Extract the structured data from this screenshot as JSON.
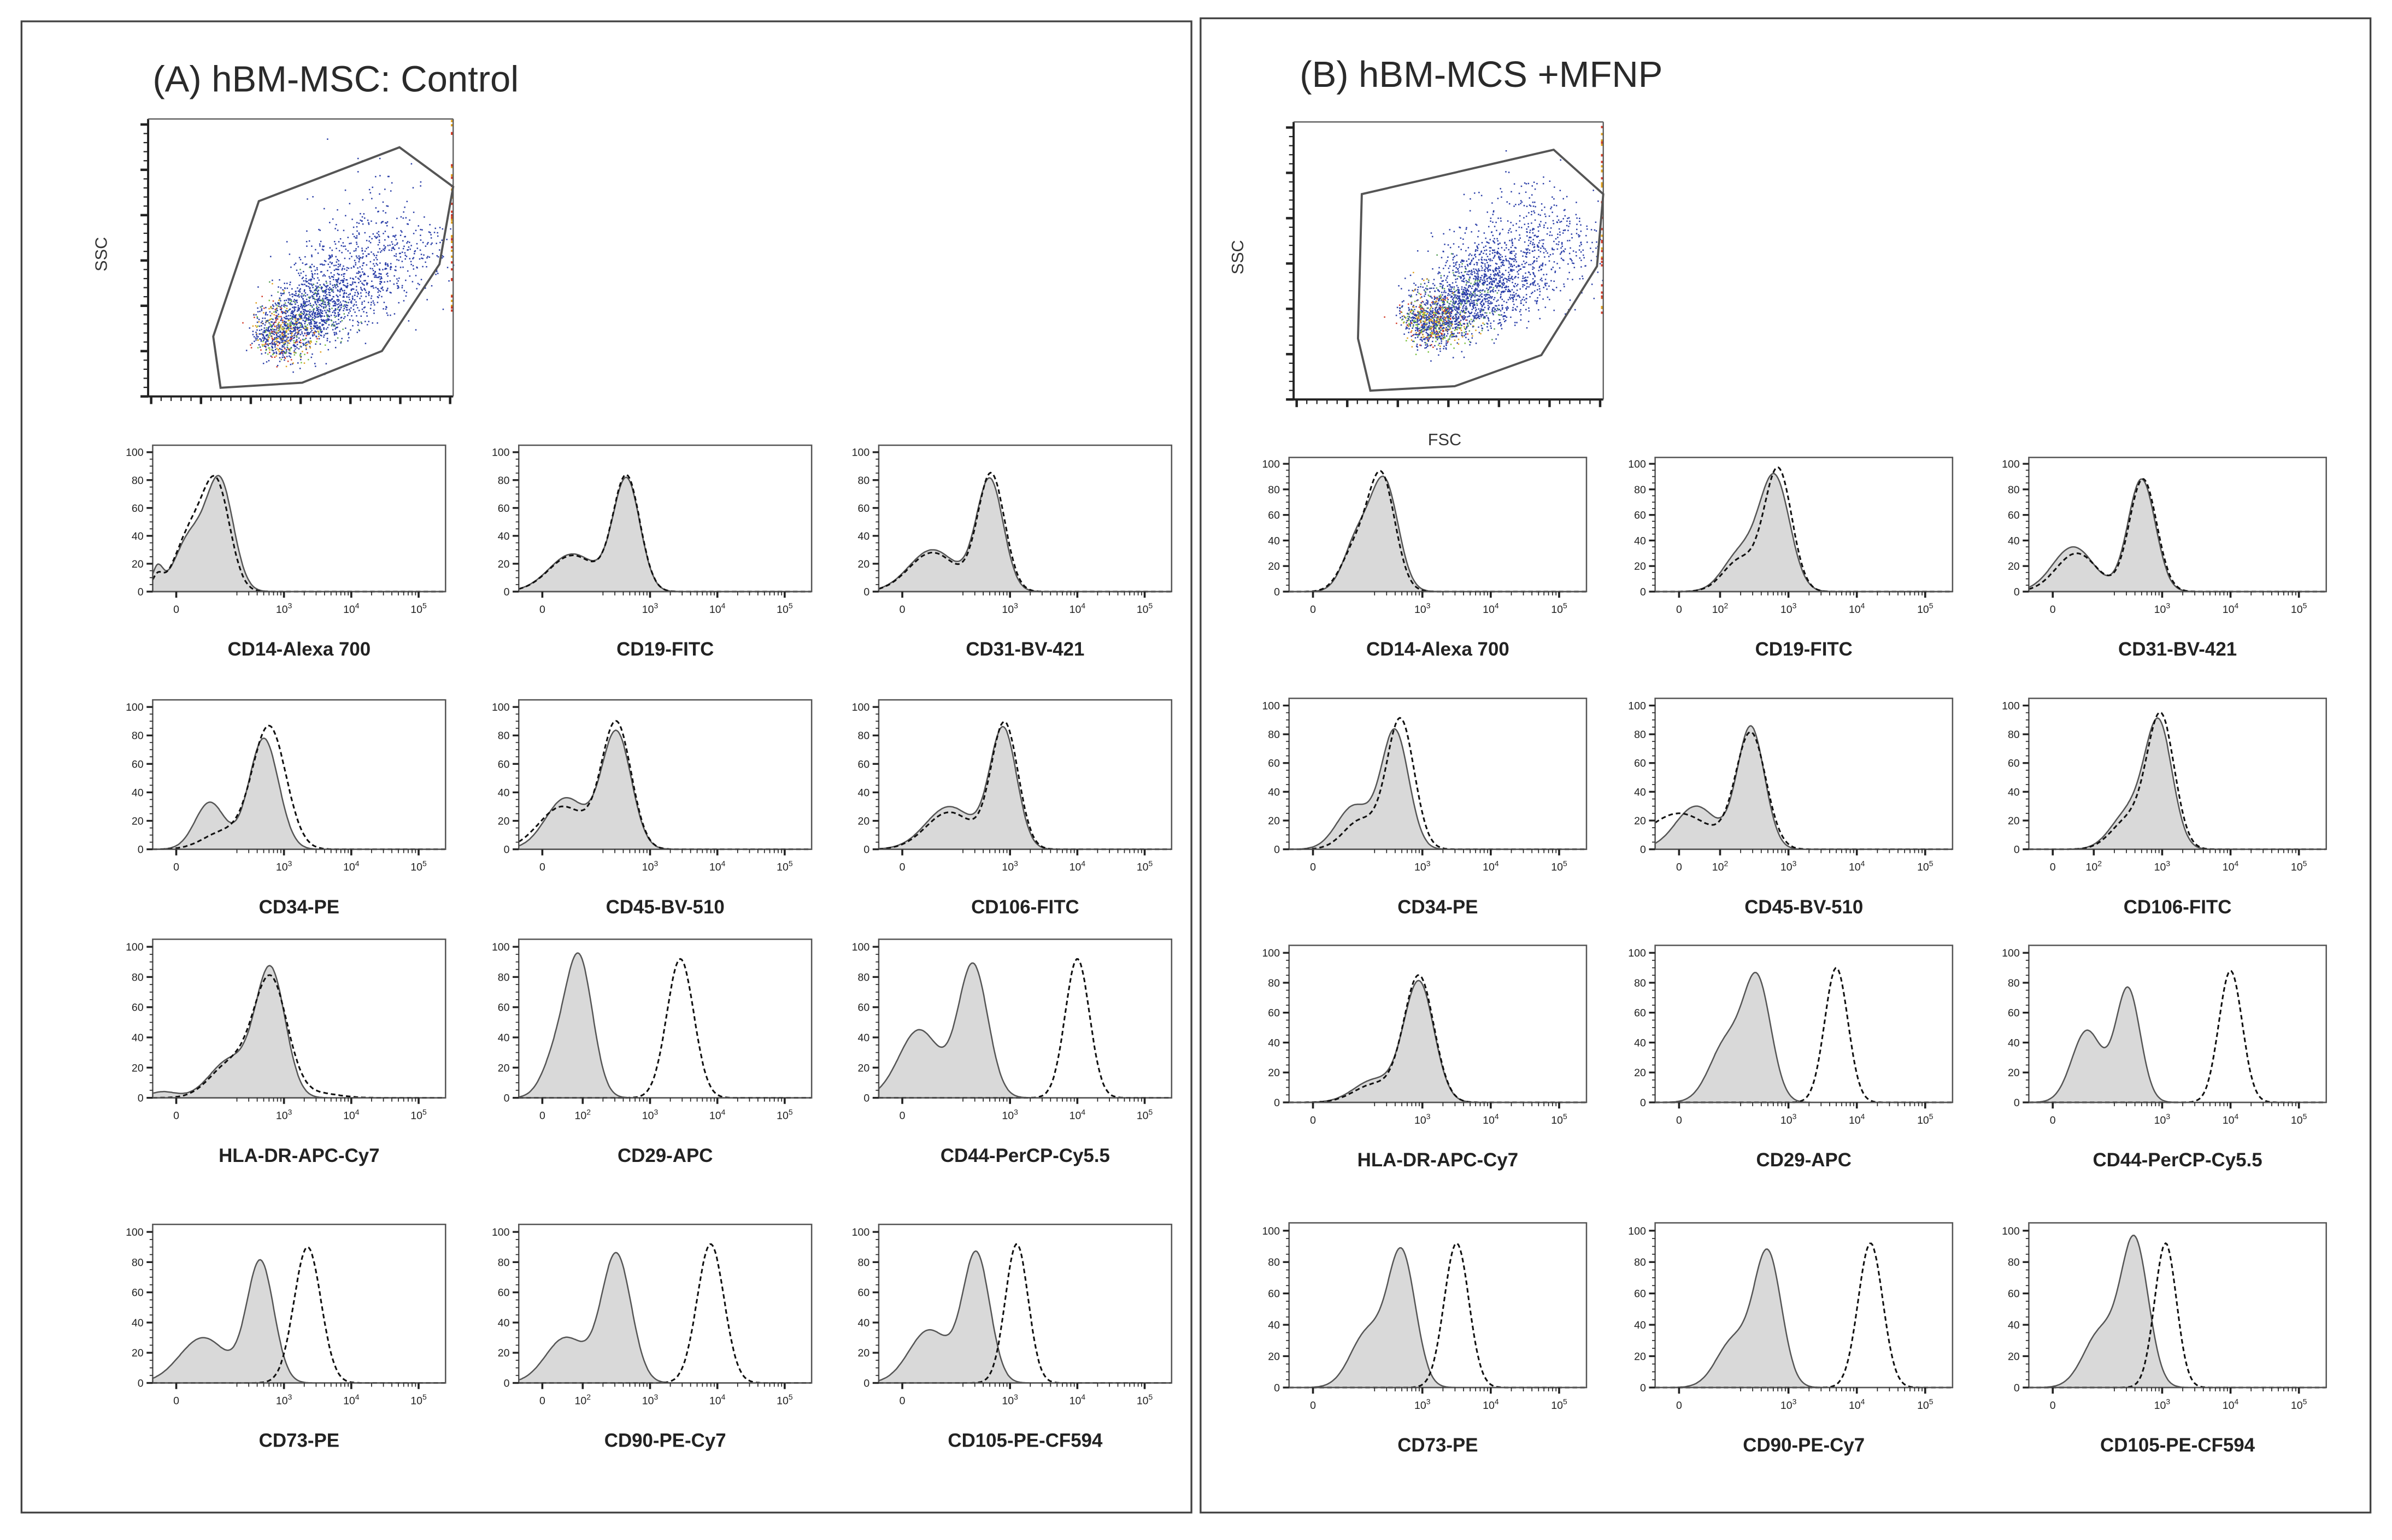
{
  "chart_data": [
    {
      "title": "(A) hBM-MSC: Control",
      "scatter": {
        "type": "scatter",
        "xlabel": "",
        "ylabel": "SSC",
        "xlim": [
          0,
          250
        ],
        "ylim": [
          0,
          250
        ],
        "gate": [
          [
            90.8,
            175.9
          ],
          [
            206,
            224.4
          ],
          [
            250,
            188.9
          ],
          [
            238.7,
            119.1
          ],
          [
            191.6,
            41
          ],
          [
            126.2,
            12.4
          ],
          [
            59.4,
            7.8
          ],
          [
            53.4,
            54
          ]
        ],
        "population": {
          "center": [
            97,
            47
          ],
          "axis_end": [
            205,
            140
          ],
          "events": 2200
        }
      },
      "histograms": [
        {
          "marker": "CD14-Alexa 700",
          "xticks": [
            "0",
            "10^3",
            "10^4",
            "10^5"
          ],
          "shaded": [
            [
              2.05,
              78,
              0.2
            ],
            [
              1.6,
              38,
              0.22
            ],
            [
              1.12,
              16,
              0.08
            ]
          ],
          "dashed": [
            [
              2.0,
              74,
              0.2
            ],
            [
              1.6,
              40,
              0.22
            ],
            [
              1.12,
              10,
              0.08
            ]
          ]
        },
        {
          "marker": "CD19-FITC",
          "xticks": [
            "0",
            "10^3",
            "10^4",
            "10^5"
          ],
          "shaded": [
            [
              2.65,
              80,
              0.2
            ],
            [
              1.85,
              27,
              0.35
            ]
          ],
          "dashed": [
            [
              2.65,
              82,
              0.2
            ],
            [
              1.85,
              26,
              0.35
            ]
          ]
        },
        {
          "marker": "CD31-BV-421",
          "xticks": [
            "0",
            "10^3",
            "10^4",
            "10^5"
          ],
          "shaded": [
            [
              2.7,
              80,
              0.2
            ],
            [
              1.85,
              30,
              0.35
            ]
          ],
          "dashed": [
            [
              2.72,
              84,
              0.2
            ],
            [
              1.85,
              28,
              0.35
            ]
          ]
        },
        {
          "marker": "CD34-PE",
          "xticks": [
            "0",
            "10^3",
            "10^4",
            "10^5"
          ],
          "shaded": [
            [
              2.7,
              78,
              0.22
            ],
            [
              1.9,
              33,
              0.22
            ]
          ],
          "dashed": [
            [
              2.78,
              86,
              0.25
            ],
            [
              2.1,
              12,
              0.3
            ]
          ]
        },
        {
          "marker": "CD45-BV-510",
          "xticks": [
            "0",
            "10^3",
            "10^4",
            "10^5"
          ],
          "shaded": [
            [
              2.5,
              82,
              0.22
            ],
            [
              1.75,
              36,
              0.3
            ]
          ],
          "dashed": [
            [
              2.5,
              88,
              0.22
            ],
            [
              1.7,
              30,
              0.35
            ]
          ]
        },
        {
          "marker": "CD106-FITC",
          "xticks": [
            "0",
            "10^3",
            "10^4",
            "10^5"
          ],
          "shaded": [
            [
              2.9,
              84,
              0.2
            ],
            [
              2.1,
              30,
              0.35
            ]
          ],
          "dashed": [
            [
              2.92,
              88,
              0.2
            ],
            [
              2.1,
              26,
              0.35
            ]
          ]
        },
        {
          "marker": "HLA-DR-APC-Cy7",
          "xticks": [
            "0",
            "10^3",
            "10^4",
            "10^5"
          ],
          "shaded": [
            [
              2.8,
              84,
              0.22
            ],
            [
              2.2,
              25,
              0.3
            ],
            [
              1.2,
              4,
              0.2
            ]
          ],
          "dashed": [
            [
              2.8,
              78,
              0.25
            ],
            [
              2.2,
              22,
              0.3
            ],
            [
              3.5,
              3,
              0.3
            ]
          ]
        },
        {
          "marker": "CD29-APC",
          "xticks": [
            "0",
            "10^2",
            "10^3",
            "10^4",
            "10^5"
          ],
          "shaded": [
            [
              1.95,
              90,
              0.2
            ],
            [
              1.6,
              25,
              0.2
            ]
          ],
          "dashed": [
            [
              3.45,
              92,
              0.2
            ]
          ]
        },
        {
          "marker": "CD44-PerCP-Cy5.5",
          "xticks": [
            "0",
            "10^3",
            "10^4",
            "10^5"
          ],
          "shaded": [
            [
              2.45,
              88,
              0.22
            ],
            [
              1.65,
              45,
              0.3
            ]
          ],
          "dashed": [
            [
              4.0,
              92,
              0.18
            ]
          ]
        },
        {
          "marker": "CD73-PE",
          "xticks": [
            "0",
            "10^3",
            "10^4",
            "10^5"
          ],
          "shaded": [
            [
              2.65,
              80,
              0.2
            ],
            [
              1.8,
              30,
              0.35
            ]
          ],
          "dashed": [
            [
              3.35,
              90,
              0.2
            ]
          ]
        },
        {
          "marker": "CD90-PE-Cy7",
          "xticks": [
            "0",
            "10^2",
            "10^3",
            "10^4",
            "10^5"
          ],
          "shaded": [
            [
              2.5,
              85,
              0.22
            ],
            [
              1.75,
              30,
              0.3
            ]
          ],
          "dashed": [
            [
              3.9,
              92,
              0.2
            ]
          ]
        },
        {
          "marker": "CD105-PE-CF594",
          "xticks": [
            "0",
            "10^3",
            "10^4",
            "10^5"
          ],
          "shaded": [
            [
              2.5,
              85,
              0.2
            ],
            [
              1.8,
              35,
              0.3
            ]
          ],
          "dashed": [
            [
              3.1,
              92,
              0.17
            ]
          ]
        }
      ]
    },
    {
      "title": "(B) hBM-MCS +MFNP",
      "scatter": {
        "type": "scatter",
        "xlabel": "FSC",
        "ylabel": "SSC",
        "xlim": [
          0,
          250
        ],
        "ylim": [
          0,
          250
        ],
        "gate": [
          [
            55,
            185
          ],
          [
            210,
            225
          ],
          [
            250,
            185
          ],
          [
            245,
            120
          ],
          [
            200,
            40
          ],
          [
            130,
            12
          ],
          [
            62,
            8
          ],
          [
            52,
            55
          ]
        ],
        "population": {
          "center": [
            100,
            60
          ],
          "axis_end": [
            210,
            150
          ],
          "events": 2600
        }
      },
      "histograms": [
        {
          "marker": "CD14-Alexa 700",
          "xticks": [
            "0",
            "10^3",
            "10^4",
            "10^5"
          ],
          "shaded": [
            [
              2.45,
              84,
              0.2
            ],
            [
              2.05,
              40,
              0.2
            ]
          ],
          "dashed": [
            [
              2.4,
              90,
              0.2
            ],
            [
              2.0,
              30,
              0.2
            ]
          ]
        },
        {
          "marker": "CD19-FITC",
          "xticks": [
            "0",
            "10^2",
            "10^3",
            "10^4",
            "10^5"
          ],
          "shaded": [
            [
              2.8,
              88,
              0.22
            ],
            [
              2.3,
              30,
              0.25
            ]
          ],
          "dashed": [
            [
              2.85,
              95,
              0.2
            ],
            [
              2.3,
              25,
              0.25
            ]
          ]
        },
        {
          "marker": "CD31-BV-421",
          "xticks": [
            "0",
            "10^3",
            "10^4",
            "10^5"
          ],
          "shaded": [
            [
              2.7,
              88,
              0.2
            ],
            [
              1.7,
              35,
              0.3
            ]
          ],
          "dashed": [
            [
              2.72,
              88,
              0.2
            ],
            [
              1.75,
              30,
              0.3
            ]
          ]
        },
        {
          "marker": "CD34-PE",
          "xticks": [
            "0",
            "10^3",
            "10^4",
            "10^5"
          ],
          "shaded": [
            [
              2.6,
              82,
              0.2
            ],
            [
              2.0,
              30,
              0.25
            ]
          ],
          "dashed": [
            [
              2.68,
              90,
              0.2
            ],
            [
              2.1,
              20,
              0.25
            ]
          ]
        },
        {
          "marker": "CD45-BV-510",
          "xticks": [
            "0",
            "10^2",
            "10^3",
            "10^4",
            "10^5"
          ],
          "shaded": [
            [
              2.45,
              85,
              0.2
            ],
            [
              1.65,
              30,
              0.3
            ]
          ],
          "dashed": [
            [
              2.45,
              80,
              0.22
            ],
            [
              1.4,
              25,
              0.45
            ]
          ]
        },
        {
          "marker": "CD106-FITC",
          "xticks": [
            "0",
            "10^2",
            "10^3",
            "10^4",
            "10^5"
          ],
          "shaded": [
            [
              2.95,
              86,
              0.2
            ],
            [
              2.5,
              25,
              0.25
            ]
          ],
          "dashed": [
            [
              2.98,
              92,
              0.2
            ],
            [
              2.5,
              20,
              0.25
            ]
          ]
        },
        {
          "marker": "HLA-DR-APC-Cy7",
          "xticks": [
            "0",
            "10^3",
            "10^4",
            "10^5"
          ],
          "shaded": [
            [
              2.95,
              80,
              0.22
            ],
            [
              2.3,
              15,
              0.3
            ]
          ],
          "dashed": [
            [
              2.95,
              84,
              0.22
            ],
            [
              2.3,
              12,
              0.3
            ]
          ]
        },
        {
          "marker": "CD29-APC",
          "xticks": [
            "0",
            "10^3",
            "10^4",
            "10^5"
          ],
          "shaded": [
            [
              2.55,
              78,
              0.2
            ],
            [
              2.1,
              40,
              0.25
            ]
          ],
          "dashed": [
            [
              3.7,
              90,
              0.17
            ]
          ]
        },
        {
          "marker": "CD44-PerCP-Cy5.5",
          "xticks": [
            "0",
            "10^3",
            "10^4",
            "10^5"
          ],
          "shaded": [
            [
              2.5,
              76,
              0.18
            ],
            [
              1.9,
              48,
              0.22
            ]
          ],
          "dashed": [
            [
              4.0,
              88,
              0.17
            ]
          ]
        },
        {
          "marker": "CD73-PE",
          "xticks": [
            "0",
            "10^3",
            "10^4",
            "10^5"
          ],
          "shaded": [
            [
              2.7,
              84,
              0.2
            ],
            [
              2.2,
              35,
              0.25
            ]
          ],
          "dashed": [
            [
              3.5,
              92,
              0.18
            ]
          ]
        },
        {
          "marker": "CD90-PE-Cy7",
          "xticks": [
            "0",
            "10^3",
            "10^4",
            "10^5"
          ],
          "shaded": [
            [
              2.7,
              84,
              0.2
            ],
            [
              2.2,
              30,
              0.25
            ]
          ],
          "dashed": [
            [
              4.2,
              92,
              0.18
            ]
          ]
        },
        {
          "marker": "CD105-PE-CF594",
          "xticks": [
            "0",
            "10^3",
            "10^4",
            "10^5"
          ],
          "shaded": [
            [
              2.6,
              92,
              0.2
            ],
            [
              2.1,
              35,
              0.25
            ]
          ],
          "dashed": [
            [
              3.05,
              92,
              0.16
            ]
          ]
        }
      ],
      "hist_yticks": [
        "0",
        "20",
        "40",
        "60",
        "80",
        "100"
      ]
    }
  ],
  "hist_axes": {
    "type": "area",
    "ylim": [
      0,
      105
    ],
    "xlim_log": [
      1.05,
      5.4
    ],
    "yticks": [
      "0",
      "20",
      "40",
      "60",
      "80",
      "100"
    ],
    "legend": "none"
  },
  "colors": {
    "shaded_fill": "#d9d9d9",
    "shaded_line": "#555555",
    "dashed_line": "#111111",
    "gate": "#555555",
    "frame": "#555555"
  }
}
